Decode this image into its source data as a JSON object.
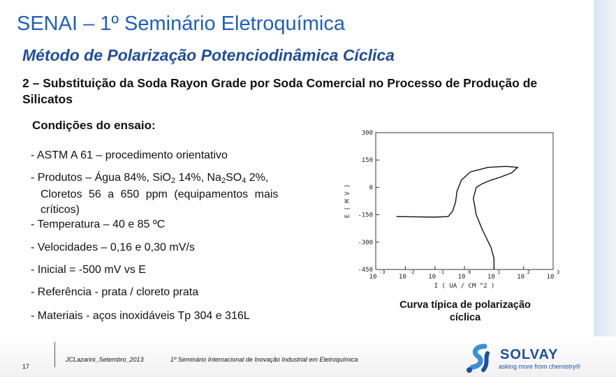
{
  "title": "SENAI – 1º Seminário Eletroquímica",
  "subtitle": "Método de Polarização Potenciodinâmica Cíclica",
  "heading": "2 – Substituição da Soda Rayon Grade por Soda Comercial no Processo de Produção de Silicatos",
  "conditions_label": "Condições do ensaio:",
  "items": {
    "astm": "- ASTM A 61 – procedimento orientativo",
    "produtos_a": "- Produtos – Água 84%, SiO",
    "produtos_sub1": "2",
    "produtos_b": " 14%, Na",
    "produtos_sub2": "2",
    "produtos_c": "SO",
    "produtos_sub3": "4",
    "produtos_d": " 2%,",
    "cloretos": "Cloretos 56 a 650 ppm (equipamentos mais",
    "criticos": "críticos)",
    "temperatura": "- Temperatura – 40 e 85 ºC",
    "velocidades": "- Velocidades – 0,16 e 0,30 mV/s",
    "inicial": "- Inicial = -500 mV vs E",
    "referencia": "- Referência - prata / cloreto prata",
    "materiais": "- Materiais - aços inoxidáveis Tp 304 e 316L"
  },
  "chart_data": {
    "type": "line",
    "ylabel": "E ( M V )",
    "xlabel": "I ( UA / CM ^2 )",
    "yticks": [
      "300",
      "150",
      "0",
      "-150",
      "-300",
      "-450"
    ],
    "xticks": [
      "-3",
      "-2",
      "-1",
      "0",
      "1",
      "2",
      "3"
    ],
    "xtick_base": "10",
    "x_scale": "log",
    "xlim": [
      -3,
      3
    ],
    "ylim": [
      -450,
      300
    ],
    "series": [
      {
        "points": [
          [
            -2.3,
            -160
          ],
          [
            -1.5,
            -162
          ],
          [
            -1.0,
            -163
          ],
          [
            -0.55,
            -160
          ],
          [
            -0.4,
            -130
          ],
          [
            -0.3,
            -80
          ],
          [
            -0.25,
            -20
          ],
          [
            -0.1,
            40
          ],
          [
            0.2,
            85
          ],
          [
            0.8,
            110
          ],
          [
            1.4,
            115
          ],
          [
            1.8,
            110
          ],
          [
            1.6,
            80
          ],
          [
            1.2,
            55
          ],
          [
            0.9,
            40
          ],
          [
            0.6,
            20
          ],
          [
            0.4,
            0
          ],
          [
            0.3,
            -60
          ],
          [
            0.4,
            -150
          ],
          [
            0.6,
            -230
          ],
          [
            0.9,
            -330
          ],
          [
            1.0,
            -390
          ],
          [
            1.0,
            -450
          ]
        ]
      }
    ],
    "caption": "Curva típica de polarização cíclica"
  },
  "footer": {
    "page_number": "17",
    "author": "JCLazarini_Setembro_2013",
    "event": "1º Seminário Internacional de Inovação Industrial em Eletroquímica",
    "brand": "SOLVAY",
    "tagline": "asking more from chemistry®"
  },
  "colors": {
    "title": "#1f5fbf",
    "brand": "#1e4f9c"
  },
  "icons": {
    "logo": "solvay-logo-icon"
  }
}
